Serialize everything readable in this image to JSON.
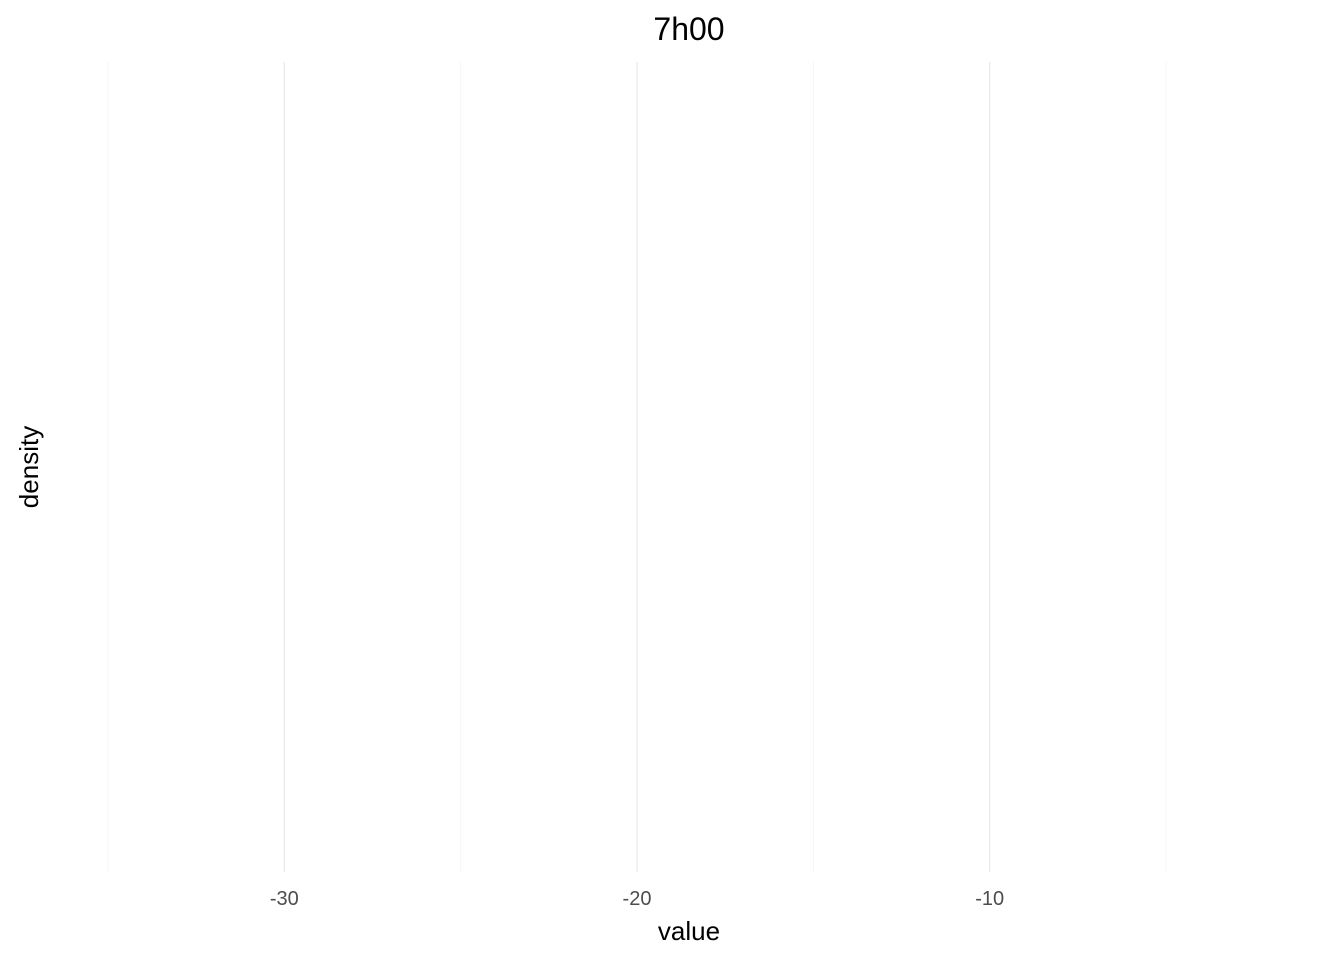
{
  "chart_data": {
    "type": "area",
    "title": "7h00",
    "xlabel": "value",
    "ylabel": "density",
    "xlim": [
      -35,
      -5
    ],
    "x_ticks": [
      -30,
      -20,
      -10
    ],
    "x_tick_labels": [
      "-30",
      "-20",
      "-10"
    ],
    "x_minor_ticks": [
      -35,
      -25,
      -15,
      -5
    ],
    "series": [],
    "grid": true,
    "y_ticks": []
  }
}
